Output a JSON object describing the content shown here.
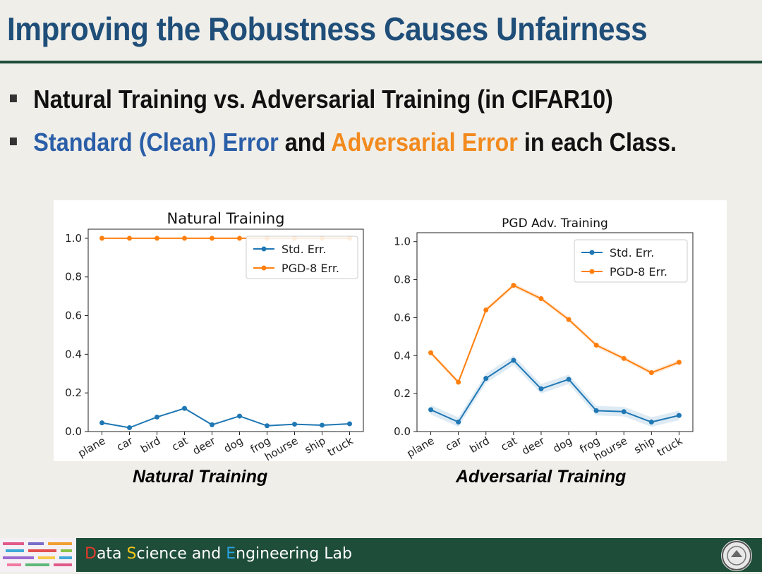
{
  "slide": {
    "title": "Improving the Robustness Causes Unfairness",
    "bullet1": "Natural Training vs. Adversarial Training (in CIFAR10)",
    "bullet2_part1": "Standard (Clean) Error",
    "bullet2_part2": " and ",
    "bullet2_part3": "Adversarial Error",
    "bullet2_part4": " in each Class.",
    "caption_left": "Natural Training",
    "caption_right": "Adversarial Training"
  },
  "footer": {
    "lab_d": "D",
    "lab_1": "ata ",
    "lab_s": "S",
    "lab_2": "cience and ",
    "lab_e": "E",
    "lab_3": "ngineering Lab"
  },
  "colors": {
    "std": "#1f77b4",
    "pgd": "#ff7f0e",
    "title": "#1f4e79",
    "footer": "#1e4d3a"
  },
  "chart_data": [
    {
      "type": "line",
      "title": "Natural Training",
      "categories": [
        "plane",
        "car",
        "bird",
        "cat",
        "deer",
        "dog",
        "frog",
        "hourse",
        "ship",
        "truck"
      ],
      "ylim": [
        0,
        1.0
      ],
      "yticks": [
        "0.0",
        "0.2",
        "0.4",
        "0.6",
        "0.8",
        "1.0"
      ],
      "legend_position": "top-right",
      "series": [
        {
          "name": "Std. Err.",
          "values": [
            0.045,
            0.02,
            0.075,
            0.12,
            0.035,
            0.08,
            0.03,
            0.038,
            0.033,
            0.04
          ]
        },
        {
          "name": "PGD-8 Err.",
          "values": [
            1.0,
            1.0,
            1.0,
            1.0,
            1.0,
            1.0,
            1.0,
            1.0,
            1.0,
            1.0
          ]
        }
      ]
    },
    {
      "type": "line",
      "title": "PGD Adv. Training",
      "categories": [
        "plane",
        "car",
        "bird",
        "cat",
        "deer",
        "dog",
        "frog",
        "hourse",
        "ship",
        "truck"
      ],
      "ylim": [
        0,
        1.0
      ],
      "yticks": [
        "0.0",
        "0.2",
        "0.4",
        "0.6",
        "0.8",
        "1.0"
      ],
      "legend_position": "top-right",
      "series": [
        {
          "name": "Std. Err.",
          "values": [
            0.115,
            0.05,
            0.28,
            0.375,
            0.225,
            0.275,
            0.11,
            0.105,
            0.05,
            0.085
          ]
        },
        {
          "name": "PGD-8 Err.",
          "values": [
            0.415,
            0.26,
            0.64,
            0.77,
            0.7,
            0.59,
            0.455,
            0.385,
            0.31,
            0.365
          ]
        }
      ]
    }
  ]
}
